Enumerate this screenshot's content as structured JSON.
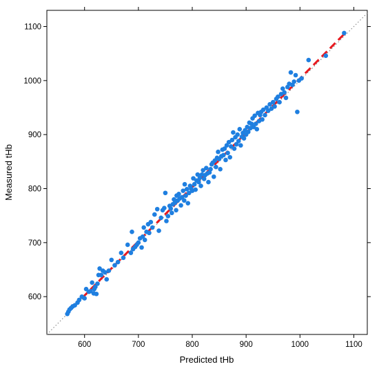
{
  "chart_data": {
    "type": "scatter",
    "xlabel": "Predicted tHb",
    "ylabel": "Measured tHb",
    "xlim": [
      530,
      1125
    ],
    "ylim": [
      530,
      1130
    ],
    "xticks": [
      600,
      700,
      800,
      900,
      1000,
      1100
    ],
    "yticks": [
      600,
      700,
      800,
      900,
      1000,
      1100
    ],
    "grid": false,
    "legend": "none",
    "colors": {
      "points": "#1f7fe0",
      "fit_line": "#e8191f",
      "identity_line": "#8c8c8c"
    },
    "identity_line": {
      "x": [
        530,
        1125
      ],
      "y": [
        530,
        1125
      ]
    },
    "fit_line": {
      "x": [
        565,
        1085
      ],
      "y": [
        567,
        1089
      ]
    },
    "points": [
      [
        568,
        568
      ],
      [
        570,
        572
      ],
      [
        572,
        576
      ],
      [
        575,
        579
      ],
      [
        578,
        582
      ],
      [
        582,
        584
      ],
      [
        587,
        589
      ],
      [
        590,
        594
      ],
      [
        595,
        600
      ],
      [
        600,
        597
      ],
      [
        603,
        614
      ],
      [
        608,
        609
      ],
      [
        611,
        610
      ],
      [
        614,
        626
      ],
      [
        617,
        606
      ],
      [
        618,
        614
      ],
      [
        620,
        618
      ],
      [
        622,
        605
      ],
      [
        624,
        624
      ],
      [
        626,
        640
      ],
      [
        628,
        652
      ],
      [
        631,
        640
      ],
      [
        634,
        648
      ],
      [
        638,
        645
      ],
      [
        641,
        632
      ],
      [
        645,
        648
      ],
      [
        650,
        668
      ],
      [
        656,
        658
      ],
      [
        662,
        664
      ],
      [
        668,
        681
      ],
      [
        672,
        672
      ],
      [
        680,
        696
      ],
      [
        686,
        681
      ],
      [
        688,
        720
      ],
      [
        690,
        688
      ],
      [
        694,
        692
      ],
      [
        697,
        696
      ],
      [
        700,
        700
      ],
      [
        703,
        708
      ],
      [
        706,
        691
      ],
      [
        708,
        711
      ],
      [
        710,
        728
      ],
      [
        712,
        705
      ],
      [
        715,
        720
      ],
      [
        718,
        734
      ],
      [
        720,
        718
      ],
      [
        723,
        738
      ],
      [
        726,
        728
      ],
      [
        730,
        752
      ],
      [
        735,
        762
      ],
      [
        738,
        722
      ],
      [
        742,
        746
      ],
      [
        745,
        760
      ],
      [
        748,
        764
      ],
      [
        750,
        792
      ],
      [
        752,
        740
      ],
      [
        755,
        749
      ],
      [
        758,
        768
      ],
      [
        760,
        763
      ],
      [
        762,
        755
      ],
      [
        764,
        771
      ],
      [
        766,
        780
      ],
      [
        768,
        774
      ],
      [
        770,
        760
      ],
      [
        771,
        787
      ],
      [
        773,
        778
      ],
      [
        775,
        790
      ],
      [
        777,
        782
      ],
      [
        779,
        769
      ],
      [
        781,
        784
      ],
      [
        783,
        796
      ],
      [
        785,
        778
      ],
      [
        786,
        808
      ],
      [
        788,
        787
      ],
      [
        790,
        799
      ],
      [
        792,
        773
      ],
      [
        794,
        792
      ],
      [
        796,
        805
      ],
      [
        798,
        800
      ],
      [
        800,
        796
      ],
      [
        802,
        819
      ],
      [
        804,
        808
      ],
      [
        806,
        798
      ],
      [
        808,
        815
      ],
      [
        810,
        826
      ],
      [
        812,
        812
      ],
      [
        814,
        820
      ],
      [
        816,
        805
      ],
      [
        818,
        826
      ],
      [
        820,
        834
      ],
      [
        822,
        818
      ],
      [
        824,
        825
      ],
      [
        826,
        838
      ],
      [
        828,
        828
      ],
      [
        830,
        812
      ],
      [
        832,
        830
      ],
      [
        834,
        836
      ],
      [
        836,
        845
      ],
      [
        838,
        848
      ],
      [
        840,
        822
      ],
      [
        842,
        852
      ],
      [
        844,
        840
      ],
      [
        846,
        857
      ],
      [
        848,
        868
      ],
      [
        850,
        855
      ],
      [
        852,
        836
      ],
      [
        854,
        860
      ],
      [
        856,
        872
      ],
      [
        858,
        862
      ],
      [
        860,
        874
      ],
      [
        862,
        853
      ],
      [
        864,
        880
      ],
      [
        866,
        866
      ],
      [
        868,
        886
      ],
      [
        870,
        858
      ],
      [
        872,
        878
      ],
      [
        874,
        890
      ],
      [
        876,
        904
      ],
      [
        878,
        874
      ],
      [
        880,
        895
      ],
      [
        882,
        882
      ],
      [
        884,
        900
      ],
      [
        886,
        888
      ],
      [
        888,
        910
      ],
      [
        890,
        880
      ],
      [
        892,
        896
      ],
      [
        894,
        903
      ],
      [
        896,
        893
      ],
      [
        898,
        908
      ],
      [
        900,
        900
      ],
      [
        902,
        914
      ],
      [
        904,
        905
      ],
      [
        906,
        922
      ],
      [
        908,
        912
      ],
      [
        910,
        920
      ],
      [
        912,
        930
      ],
      [
        914,
        914
      ],
      [
        916,
        935
      ],
      [
        918,
        920
      ],
      [
        920,
        910
      ],
      [
        922,
        940
      ],
      [
        924,
        925
      ],
      [
        926,
        936
      ],
      [
        928,
        942
      ],
      [
        930,
        928
      ],
      [
        932,
        946
      ],
      [
        935,
        936
      ],
      [
        938,
        950
      ],
      [
        941,
        944
      ],
      [
        944,
        956
      ],
      [
        947,
        948
      ],
      [
        950,
        960
      ],
      [
        953,
        952
      ],
      [
        956,
        966
      ],
      [
        959,
        970
      ],
      [
        962,
        960
      ],
      [
        965,
        975
      ],
      [
        968,
        985
      ],
      [
        971,
        978
      ],
      [
        974,
        968
      ],
      [
        977,
        988
      ],
      [
        980,
        994
      ],
      [
        983,
        1015
      ],
      [
        986,
        992
      ],
      [
        989,
        998
      ],
      [
        992,
        1010
      ],
      [
        995,
        942
      ],
      [
        998,
        1000
      ],
      [
        1003,
        1004
      ],
      [
        1016,
        1038
      ],
      [
        1048,
        1046
      ],
      [
        1082,
        1088
      ]
    ]
  }
}
